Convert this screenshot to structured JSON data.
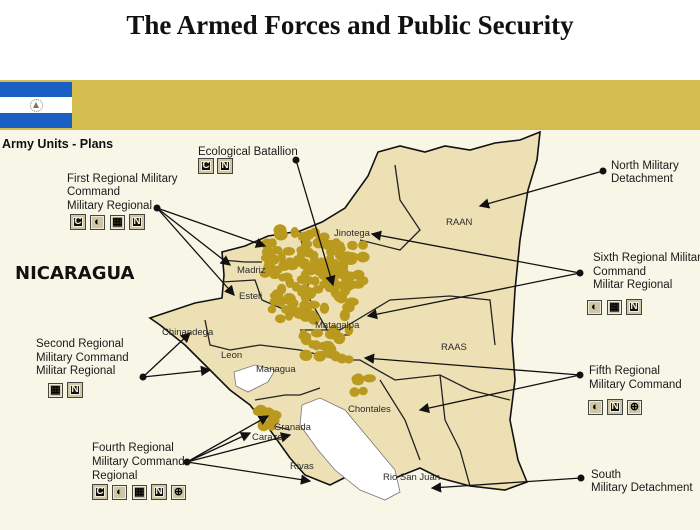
{
  "title": "The Armed Forces and Public Security",
  "section_title": "Army Units - Plans",
  "country_label": "NICARAGUA",
  "colors": {
    "banner": "#d4bc4e",
    "flag_blue": "#1a5fc4",
    "land": "#ede0b4",
    "unit_areas": "#b99a1e",
    "background": "#f8f6e7"
  },
  "departments": [
    "Jinotega",
    "RAAN",
    "Madriz",
    "Esteli",
    "Matagalpa",
    "Chinandega",
    "Leon",
    "Managua",
    "RAAS",
    "Chontales",
    "Granada",
    "Carazo",
    "Rivas",
    "Rio San Juan"
  ],
  "units": [
    {
      "name_lines": [
        "Ecological Batallion"
      ],
      "badges": [
        "C",
        "N"
      ]
    },
    {
      "name_lines": [
        "First Regional Military",
        "Command",
        "Military Regional"
      ],
      "badges": [
        "C",
        "O",
        "grid",
        "N"
      ]
    },
    {
      "name_lines": [
        "Second Regional",
        "Military Command",
        "Militar Regional"
      ],
      "badges": [
        "grid",
        "N"
      ]
    },
    {
      "name_lines": [
        "Fourth Regional",
        "Military Command",
        "Regional"
      ],
      "badges": [
        "C",
        "O",
        "grid",
        "N",
        "crosshair"
      ]
    },
    {
      "name_lines": [
        "North Military",
        "Detachment"
      ],
      "badges": []
    },
    {
      "name_lines": [
        "Sixth Regional Military",
        "Command",
        "Militar Regional"
      ],
      "badges": [
        "O",
        "grid",
        "N"
      ]
    },
    {
      "name_lines": [
        "Fifth Regional",
        "Military Command"
      ],
      "badges": [
        "O",
        "N",
        "crosshair"
      ]
    },
    {
      "name_lines": [
        "South",
        "Military Detachment"
      ],
      "badges": []
    }
  ]
}
